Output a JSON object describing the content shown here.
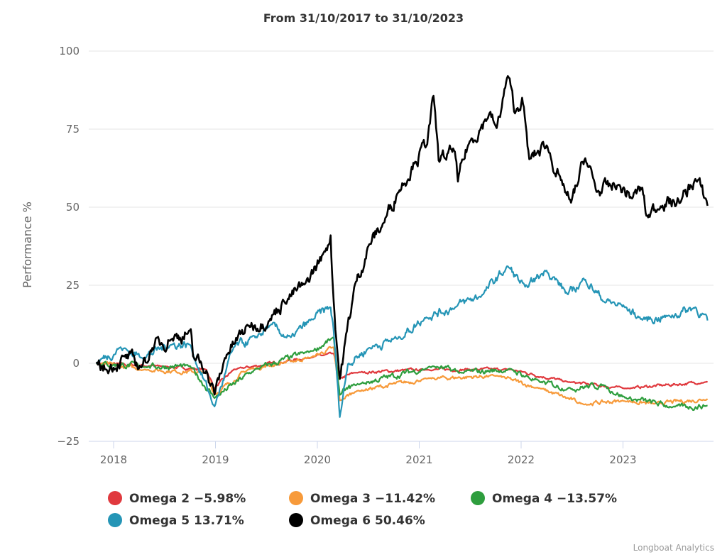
{
  "chart_data": {
    "type": "line",
    "title": "From 31/10/2017 to 31/10/2023",
    "ylabel": "Performance %",
    "xlabel": "",
    "ylim": [
      -25,
      100
    ],
    "xlim": [
      2017.83,
      2023.83
    ],
    "y_ticks": [
      "100",
      "75",
      "50",
      "25",
      "0",
      "−25"
    ],
    "y_tick_values": [
      100,
      75,
      50,
      25,
      0,
      -25
    ],
    "x_ticks": [
      "2018",
      "2019",
      "2020",
      "2021",
      "2022",
      "2023"
    ],
    "x_tick_values": [
      2018,
      2019,
      2020,
      2021,
      2022,
      2023
    ],
    "grid": true,
    "legend_position": "bottom",
    "series": [
      {
        "name": "Omega 2",
        "legend": "Omega 2 −5.98%",
        "color": "#e0393e",
        "final": -5.98,
        "noise": 0.35,
        "points": [
          [
            2017.83,
            0
          ],
          [
            2018.5,
            -1
          ],
          [
            2018.91,
            -2
          ],
          [
            2018.99,
            -8
          ],
          [
            2019.18,
            -2
          ],
          [
            2019.95,
            2
          ],
          [
            2020.16,
            3
          ],
          [
            2020.22,
            -5
          ],
          [
            2020.37,
            -3
          ],
          [
            2021.07,
            -2
          ],
          [
            2021.9,
            -2
          ],
          [
            2022.46,
            -6
          ],
          [
            2023.02,
            -8
          ],
          [
            2023.83,
            -5.98
          ]
        ]
      },
      {
        "name": "Omega 3",
        "legend": "Omega 3 −11.42%",
        "color": "#f79a3a",
        "final": -11.42,
        "noise": 0.5,
        "points": [
          [
            2017.83,
            0
          ],
          [
            2018.3,
            -2
          ],
          [
            2018.91,
            -3
          ],
          [
            2018.99,
            -10
          ],
          [
            2019.32,
            -2
          ],
          [
            2019.95,
            2
          ],
          [
            2020.16,
            5
          ],
          [
            2020.22,
            -12
          ],
          [
            2020.37,
            -9
          ],
          [
            2021.07,
            -5
          ],
          [
            2021.76,
            -4
          ],
          [
            2022.18,
            -8
          ],
          [
            2022.6,
            -13
          ],
          [
            2023.02,
            -12
          ],
          [
            2023.3,
            -13
          ],
          [
            2023.83,
            -11.42
          ]
        ]
      },
      {
        "name": "Omega 4",
        "legend": "Omega 4 −13.57%",
        "color": "#2e9e3e",
        "final": -13.57,
        "noise": 0.7,
        "points": [
          [
            2017.83,
            0
          ],
          [
            2018.3,
            -1
          ],
          [
            2018.75,
            -1
          ],
          [
            2018.99,
            -11
          ],
          [
            2019.39,
            -2
          ],
          [
            2019.95,
            4
          ],
          [
            2020.16,
            8
          ],
          [
            2020.22,
            -10
          ],
          [
            2020.37,
            -7
          ],
          [
            2021.14,
            -1
          ],
          [
            2021.41,
            -3
          ],
          [
            2021.9,
            -2
          ],
          [
            2022.18,
            -6
          ],
          [
            2022.46,
            -8
          ],
          [
            2022.81,
            -7
          ],
          [
            2023.02,
            -11
          ],
          [
            2023.51,
            -14
          ],
          [
            2023.83,
            -13.57
          ]
        ]
      },
      {
        "name": "Omega 5",
        "legend": "Omega 5 13.71%",
        "color": "#2595b6",
        "final": 13.71,
        "noise": 1.1,
        "points": [
          [
            2017.83,
            0
          ],
          [
            2018.06,
            5
          ],
          [
            2018.28,
            2
          ],
          [
            2018.56,
            6
          ],
          [
            2018.75,
            6
          ],
          [
            2018.99,
            -14
          ],
          [
            2019.18,
            5
          ],
          [
            2019.39,
            8
          ],
          [
            2019.53,
            12
          ],
          [
            2019.74,
            8
          ],
          [
            2019.95,
            14
          ],
          [
            2020.13,
            18
          ],
          [
            2020.16,
            10
          ],
          [
            2020.22,
            -17
          ],
          [
            2020.3,
            0
          ],
          [
            2020.51,
            5
          ],
          [
            2020.79,
            8
          ],
          [
            2021.07,
            15
          ],
          [
            2021.35,
            18
          ],
          [
            2021.62,
            22
          ],
          [
            2021.87,
            31
          ],
          [
            2022.04,
            24
          ],
          [
            2022.25,
            30
          ],
          [
            2022.46,
            22
          ],
          [
            2022.63,
            27
          ],
          [
            2022.81,
            20
          ],
          [
            2023.02,
            18
          ],
          [
            2023.19,
            14
          ],
          [
            2023.44,
            15
          ],
          [
            2023.71,
            18
          ],
          [
            2023.83,
            13.71
          ]
        ]
      },
      {
        "name": "Omega 6",
        "legend": "Omega 6 50.46%",
        "color": "#000000",
        "final": 50.46,
        "noise": 1.7,
        "points": [
          [
            2017.83,
            0
          ],
          [
            2017.93,
            -2
          ],
          [
            2018.1,
            2
          ],
          [
            2018.28,
            -1
          ],
          [
            2018.38,
            5
          ],
          [
            2018.56,
            8
          ],
          [
            2018.75,
            10
          ],
          [
            2018.78,
            2
          ],
          [
            2018.91,
            -2
          ],
          [
            2018.99,
            -10
          ],
          [
            2019.11,
            3
          ],
          [
            2019.32,
            12
          ],
          [
            2019.53,
            14
          ],
          [
            2019.67,
            20
          ],
          [
            2019.88,
            25
          ],
          [
            2020.06,
            35
          ],
          [
            2020.13,
            41
          ],
          [
            2020.16,
            20
          ],
          [
            2020.22,
            -5
          ],
          [
            2020.29,
            10
          ],
          [
            2020.37,
            25
          ],
          [
            2020.51,
            38
          ],
          [
            2020.65,
            45
          ],
          [
            2020.79,
            55
          ],
          [
            2020.96,
            65
          ],
          [
            2021.07,
            70
          ],
          [
            2021.14,
            85
          ],
          [
            2021.19,
            65
          ],
          [
            2021.35,
            68
          ],
          [
            2021.38,
            58
          ],
          [
            2021.48,
            70
          ],
          [
            2021.69,
            80
          ],
          [
            2021.76,
            75
          ],
          [
            2021.87,
            92
          ],
          [
            2021.94,
            80
          ],
          [
            2022.01,
            85
          ],
          [
            2022.08,
            65
          ],
          [
            2022.25,
            70
          ],
          [
            2022.39,
            58
          ],
          [
            2022.49,
            51
          ],
          [
            2022.63,
            66
          ],
          [
            2022.74,
            55
          ],
          [
            2022.95,
            57
          ],
          [
            2023.09,
            53
          ],
          [
            2023.19,
            56
          ],
          [
            2023.23,
            47
          ],
          [
            2023.37,
            51
          ],
          [
            2023.57,
            52
          ],
          [
            2023.71,
            59
          ],
          [
            2023.82,
            52
          ],
          [
            2023.83,
            50.46
          ]
        ]
      }
    ]
  },
  "credits": "Longboat Analytics"
}
